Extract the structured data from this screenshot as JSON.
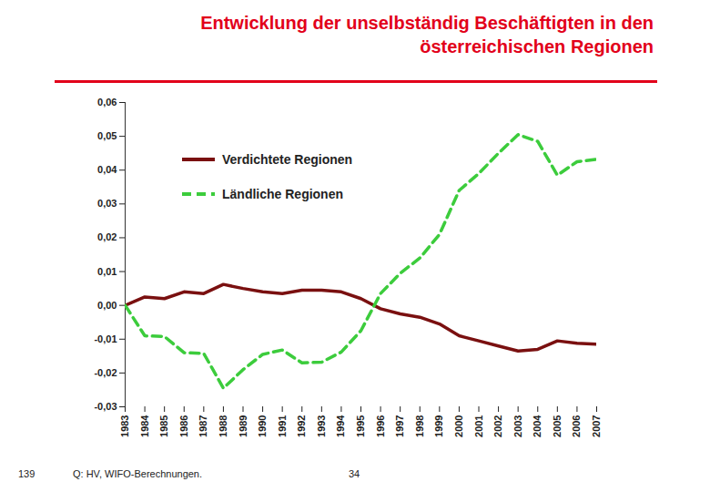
{
  "chart_data": {
    "type": "line",
    "title": "Entwicklung der unselbständig Beschäftigten in den österreichischen Regionen",
    "source": "Q: HV, WIFO-Berechnungen.",
    "annotations": [
      "139",
      "34"
    ],
    "x": [
      1983,
      1984,
      1985,
      1986,
      1987,
      1988,
      1989,
      1990,
      1991,
      1992,
      1993,
      1994,
      1995,
      1996,
      1997,
      1998,
      1999,
      2000,
      2001,
      2002,
      2003,
      2004,
      2005,
      2006,
      2007
    ],
    "series": [
      {
        "name": "Verdichtete Regionen",
        "color": "#7a1010",
        "line_style": "solid",
        "values": [
          0,
          0.0025,
          0.002,
          0.004,
          0.0035,
          0.0062,
          0.005,
          0.004,
          0.0035,
          0.0045,
          0.0045,
          0.004,
          0.002,
          -0.001,
          -0.0025,
          -0.0035,
          -0.0055,
          -0.009,
          -0.0105,
          -0.012,
          -0.0135,
          -0.013,
          -0.0105,
          -0.0112,
          -0.0115
        ]
      },
      {
        "name": "Ländliche Regionen",
        "color": "#3ccc3c",
        "line_style": "dashed",
        "values": [
          0,
          -0.009,
          -0.0092,
          -0.014,
          -0.0142,
          -0.0245,
          -0.019,
          -0.0145,
          -0.0132,
          -0.017,
          -0.0168,
          -0.0138,
          -0.0075,
          0.0035,
          0.0095,
          0.014,
          0.021,
          0.034,
          0.039,
          0.045,
          0.0505,
          0.0485,
          0.0385,
          0.0425,
          0.0432
        ]
      }
    ],
    "xlim": [
      1983,
      2007
    ],
    "xticks": [
      1983,
      1984,
      1985,
      1986,
      1987,
      1988,
      1989,
      1990,
      1991,
      1992,
      1993,
      1994,
      1995,
      1996,
      1997,
      1998,
      1999,
      2000,
      2001,
      2002,
      2003,
      2004,
      2005,
      2006,
      2007
    ],
    "ylim": [
      -0.03,
      0.06
    ],
    "yticks": [
      {
        "value": -0.03,
        "label": "-0,03"
      },
      {
        "value": -0.02,
        "label": "-0,02"
      },
      {
        "value": -0.01,
        "label": "-0,01"
      },
      {
        "value": 0,
        "label": "0,00"
      },
      {
        "value": 0.01,
        "label": "0,01"
      },
      {
        "value": 0.02,
        "label": "0,02"
      },
      {
        "value": 0.03,
        "label": "0,03"
      },
      {
        "value": 0.04,
        "label": "0,04"
      },
      {
        "value": 0.05,
        "label": "0,05"
      },
      {
        "value": 0.06,
        "label": "0,06"
      }
    ],
    "grid": false,
    "legend": "upper center"
  }
}
